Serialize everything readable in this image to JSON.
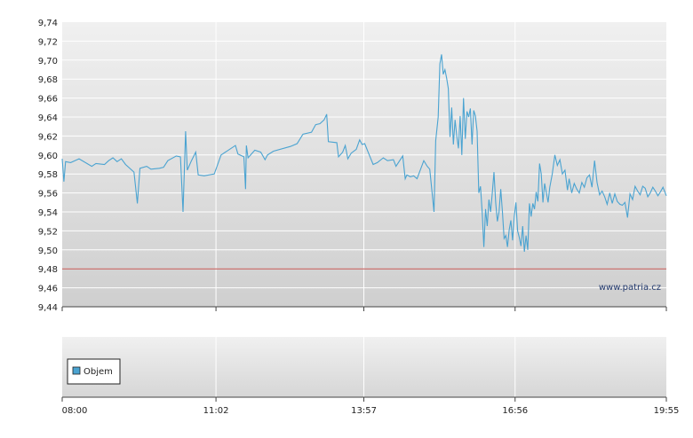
{
  "watermark": "www.patria.cz",
  "colors": {
    "series": "#4aa3d1",
    "reference": "#c0504d",
    "grid": "#ffffff"
  },
  "legend": {
    "label": "Objem",
    "icon": "square-swatch"
  },
  "chart_data": {
    "type": "line",
    "title": "",
    "xlabel": "",
    "ylabel": "",
    "ylim": [
      9.44,
      9.74
    ],
    "yticks": [
      "9,74",
      "9,72",
      "9,70",
      "9,68",
      "9,66",
      "9,64",
      "9,62",
      "9,60",
      "9,58",
      "9,56",
      "9,54",
      "9,52",
      "9,50",
      "9,48",
      "9,46",
      "9,44"
    ],
    "xticks": [
      "08:00",
      "11:02",
      "13:57",
      "16:56",
      "19:55"
    ],
    "reference_line": 9.48,
    "grid": true,
    "series": [
      {
        "points": [
          [
            "08:00",
            9.596
          ],
          [
            "08:02",
            9.572
          ],
          [
            "08:04",
            9.593
          ],
          [
            "08:10",
            9.592
          ],
          [
            "08:20",
            9.596
          ],
          [
            "08:35",
            9.588
          ],
          [
            "08:40",
            9.591
          ],
          [
            "08:50",
            9.59
          ],
          [
            "08:55",
            9.594
          ],
          [
            "09:00",
            9.597
          ],
          [
            "09:05",
            9.593
          ],
          [
            "09:10",
            9.596
          ],
          [
            "09:15",
            9.59
          ],
          [
            "09:25",
            9.582
          ],
          [
            "09:29",
            9.549
          ],
          [
            "09:32",
            9.586
          ],
          [
            "09:40",
            9.588
          ],
          [
            "09:45",
            9.585
          ],
          [
            "09:55",
            9.586
          ],
          [
            "10:00",
            9.587
          ],
          [
            "10:05",
            9.594
          ],
          [
            "10:15",
            9.599
          ],
          [
            "10:20",
            9.598
          ],
          [
            "10:23",
            9.54
          ],
          [
            "10:26",
            9.625
          ],
          [
            "10:28",
            9.584
          ],
          [
            "10:33",
            9.594
          ],
          [
            "10:38",
            9.603
          ],
          [
            "10:41",
            9.579
          ],
          [
            "10:48",
            9.578
          ],
          [
            "11:00",
            9.58
          ],
          [
            "11:08",
            9.6
          ],
          [
            "11:25",
            9.61
          ],
          [
            "11:28",
            9.601
          ],
          [
            "11:35",
            9.598
          ],
          [
            "11:37",
            9.564
          ],
          [
            "11:38",
            9.61
          ],
          [
            "11:40",
            9.597
          ],
          [
            "11:48",
            9.605
          ],
          [
            "11:55",
            9.603
          ],
          [
            "12:00",
            9.595
          ],
          [
            "12:03",
            9.6
          ],
          [
            "12:10",
            9.604
          ],
          [
            "12:30",
            9.609
          ],
          [
            "12:38",
            9.612
          ],
          [
            "12:45",
            9.622
          ],
          [
            "12:55",
            9.624
          ],
          [
            "13:00",
            9.632
          ],
          [
            "13:05",
            9.633
          ],
          [
            "13:10",
            9.637
          ],
          [
            "13:13",
            9.643
          ],
          [
            "13:15",
            9.614
          ],
          [
            "13:25",
            9.613
          ],
          [
            "13:27",
            9.598
          ],
          [
            "13:32",
            9.603
          ],
          [
            "13:35",
            9.61
          ],
          [
            "13:38",
            9.596
          ],
          [
            "13:42",
            9.602
          ],
          [
            "13:48",
            9.606
          ],
          [
            "13:52",
            9.616
          ],
          [
            "13:55",
            9.611
          ],
          [
            "13:58",
            9.612
          ],
          [
            "14:03",
            9.601
          ],
          [
            "14:08",
            9.59
          ],
          [
            "14:13",
            9.592
          ],
          [
            "14:20",
            9.597
          ],
          [
            "14:25",
            9.594
          ],
          [
            "14:32",
            9.595
          ],
          [
            "14:35",
            9.588
          ],
          [
            "14:43",
            9.599
          ],
          [
            "14:46",
            9.575
          ],
          [
            "14:48",
            9.579
          ],
          [
            "14:52",
            9.577
          ],
          [
            "14:56",
            9.578
          ],
          [
            "15:00",
            9.575
          ],
          [
            "15:08",
            9.594
          ],
          [
            "15:12",
            9.588
          ],
          [
            "15:15",
            9.585
          ],
          [
            "15:20",
            9.54
          ],
          [
            "15:22",
            9.615
          ],
          [
            "15:25",
            9.64
          ],
          [
            "15:27",
            9.696
          ],
          [
            "15:29",
            9.706
          ],
          [
            "15:31",
            9.685
          ],
          [
            "15:33",
            9.69
          ],
          [
            "15:35",
            9.681
          ],
          [
            "15:37",
            9.67
          ],
          [
            "15:39",
            9.619
          ],
          [
            "15:41",
            9.65
          ],
          [
            "15:43",
            9.611
          ],
          [
            "15:45",
            9.637
          ],
          [
            "15:47",
            9.62
          ],
          [
            "15:49",
            9.607
          ],
          [
            "15:51",
            9.641
          ],
          [
            "15:53",
            9.6
          ],
          [
            "15:55",
            9.66
          ],
          [
            "15:57",
            9.617
          ],
          [
            "15:59",
            9.646
          ],
          [
            "16:01",
            9.64
          ],
          [
            "16:03",
            9.649
          ],
          [
            "16:05",
            9.611
          ],
          [
            "16:07",
            9.647
          ],
          [
            "16:09",
            9.641
          ],
          [
            "16:11",
            9.625
          ],
          [
            "16:13",
            9.56
          ],
          [
            "16:15",
            9.567
          ],
          [
            "16:17",
            9.54
          ],
          [
            "16:19",
            9.503
          ],
          [
            "16:21",
            9.543
          ],
          [
            "16:23",
            9.525
          ],
          [
            "16:25",
            9.553
          ],
          [
            "16:27",
            9.54
          ],
          [
            "16:29",
            9.56
          ],
          [
            "16:31",
            9.582
          ],
          [
            "16:33",
            9.55
          ],
          [
            "16:35",
            9.53
          ],
          [
            "16:37",
            9.54
          ],
          [
            "16:39",
            9.564
          ],
          [
            "16:41",
            9.54
          ],
          [
            "16:43",
            9.512
          ],
          [
            "16:45",
            9.515
          ],
          [
            "16:47",
            9.503
          ],
          [
            "16:49",
            9.521
          ],
          [
            "16:51",
            9.531
          ],
          [
            "16:53",
            9.51
          ],
          [
            "16:55",
            9.535
          ],
          [
            "16:57",
            9.55
          ],
          [
            "16:59",
            9.52
          ],
          [
            "17:01",
            9.513
          ],
          [
            "17:03",
            9.504
          ],
          [
            "17:05",
            9.525
          ],
          [
            "17:07",
            9.498
          ],
          [
            "17:09",
            9.515
          ],
          [
            "17:11",
            9.5
          ],
          [
            "17:13",
            9.549
          ],
          [
            "17:15",
            9.535
          ],
          [
            "17:17",
            9.549
          ],
          [
            "17:19",
            9.543
          ],
          [
            "17:21",
            9.561
          ],
          [
            "17:23",
            9.551
          ],
          [
            "17:25",
            9.591
          ],
          [
            "17:27",
            9.58
          ],
          [
            "17:29",
            9.55
          ],
          [
            "17:31",
            9.57
          ],
          [
            "17:33",
            9.56
          ],
          [
            "17:35",
            9.55
          ],
          [
            "17:37",
            9.566
          ],
          [
            "17:40",
            9.58
          ],
          [
            "17:43",
            9.6
          ],
          [
            "17:46",
            9.589
          ],
          [
            "17:49",
            9.595
          ],
          [
            "17:52",
            9.58
          ],
          [
            "17:55",
            9.584
          ],
          [
            "17:58",
            9.563
          ],
          [
            "18:00",
            9.575
          ],
          [
            "18:03",
            9.56
          ],
          [
            "18:06",
            9.57
          ],
          [
            "18:09",
            9.564
          ],
          [
            "18:12",
            9.56
          ],
          [
            "18:15",
            9.571
          ],
          [
            "18:18",
            9.566
          ],
          [
            "18:21",
            9.576
          ],
          [
            "18:24",
            9.579
          ],
          [
            "18:27",
            9.566
          ],
          [
            "18:30",
            9.594
          ],
          [
            "18:33",
            9.571
          ],
          [
            "18:36",
            9.558
          ],
          [
            "18:39",
            9.562
          ],
          [
            "18:42",
            9.556
          ],
          [
            "18:45",
            9.548
          ],
          [
            "18:48",
            9.56
          ],
          [
            "18:51",
            9.549
          ],
          [
            "18:54",
            9.559
          ],
          [
            "18:57",
            9.551
          ],
          [
            "19:00",
            9.548
          ],
          [
            "19:03",
            9.547
          ],
          [
            "19:06",
            9.55
          ],
          [
            "19:09",
            9.534
          ],
          [
            "19:12",
            9.559
          ],
          [
            "19:15",
            9.553
          ],
          [
            "19:18",
            9.567
          ],
          [
            "19:21",
            9.562
          ],
          [
            "19:24",
            9.558
          ],
          [
            "19:27",
            9.567
          ],
          [
            "19:30",
            9.565
          ],
          [
            "19:33",
            9.556
          ],
          [
            "19:36",
            9.56
          ],
          [
            "19:39",
            9.566
          ],
          [
            "19:42",
            9.562
          ],
          [
            "19:45",
            9.557
          ],
          [
            "19:48",
            9.561
          ],
          [
            "19:51",
            9.566
          ],
          [
            "19:55",
            9.557
          ]
        ]
      }
    ]
  }
}
